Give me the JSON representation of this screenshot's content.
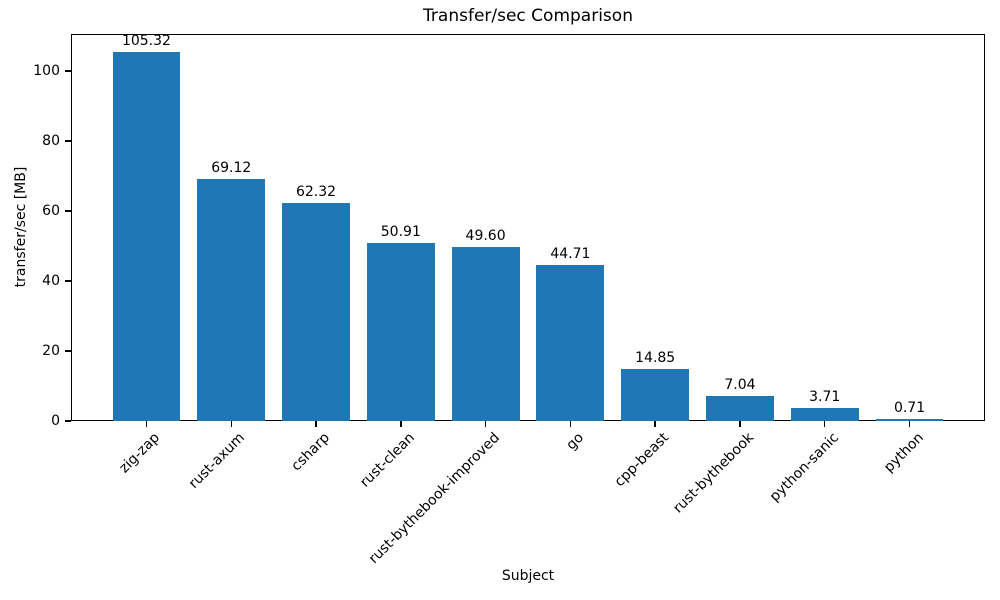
{
  "chart_data": {
    "type": "bar",
    "title": "Transfer/sec Comparison",
    "xlabel": "Subject",
    "ylabel": "transfer/sec [MB]",
    "categories": [
      "zig-zap",
      "rust-axum",
      "csharp",
      "rust-clean",
      "rust-bythebook-improved",
      "go",
      "cpp-beast",
      "rust-bythebook",
      "python-sanic",
      "python"
    ],
    "values": [
      105.32,
      69.12,
      62.32,
      50.91,
      49.6,
      44.71,
      14.85,
      7.04,
      3.71,
      0.71
    ],
    "value_labels": [
      "105.32",
      "69.12",
      "62.32",
      "50.91",
      "49.60",
      "44.71",
      "14.85",
      "7.04",
      "3.71",
      "0.71"
    ],
    "yticks": [
      0,
      20,
      40,
      60,
      80,
      100
    ],
    "ylim": [
      0,
      110.6
    ],
    "bar_color": "#1f77b4",
    "bar_width_frac": 0.8,
    "x_tick_rotation_deg": 45,
    "grid": false,
    "legend_position": "none"
  }
}
